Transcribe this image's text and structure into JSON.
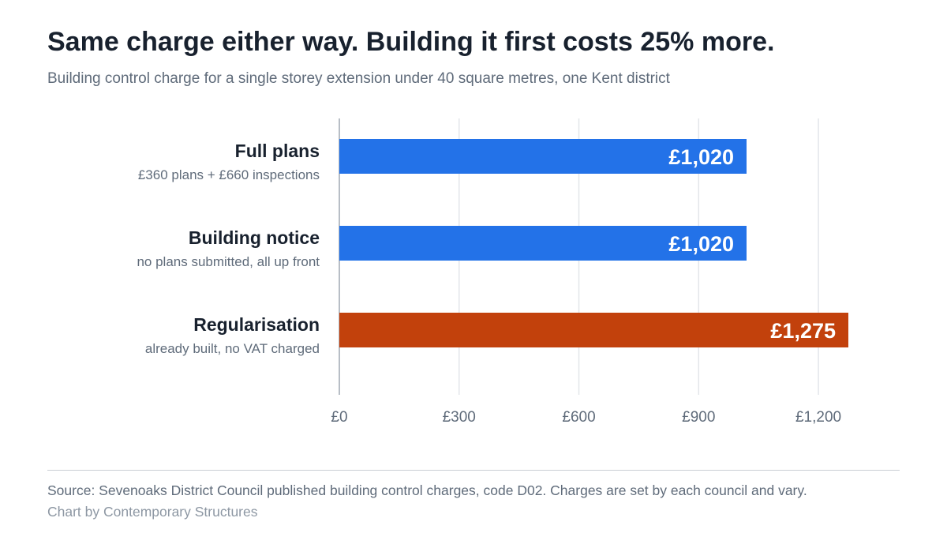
{
  "title": "Same charge either way. Building it first costs 25% more.",
  "subtitle": "Building control charge for a single storey extension under 40 square metres, one Kent district",
  "footer": {
    "source": "Source: Sevenoaks District Council published building control charges, code D02. Charges are set by each council and vary.",
    "credit": "Chart by Contemporary Structures"
  },
  "colors": {
    "standard_bar": "#2372e8",
    "highlight_bar": "#c2410c",
    "gridline": "#e3e6ea",
    "axis": "#b8bec6"
  },
  "chart_data": {
    "type": "bar",
    "orientation": "horizontal",
    "categories": [
      "Full plans",
      "Building notice",
      "Regularisation"
    ],
    "category_notes": [
      "£360 plans + £660 inspections",
      "no plans submitted, all up front",
      "already built, no VAT charged"
    ],
    "values": [
      1020,
      1020,
      1275
    ],
    "value_labels": [
      "£1,020",
      "£1,020",
      "£1,275"
    ],
    "highlighted": [
      false,
      false,
      true
    ],
    "xlim": [
      0,
      1275
    ],
    "x_ticks": [
      0,
      300,
      600,
      900,
      1200
    ],
    "x_tick_labels": [
      "£0",
      "£300",
      "£600",
      "£900",
      "£1,200"
    ],
    "grid": true,
    "xlabel": "",
    "ylabel": ""
  }
}
